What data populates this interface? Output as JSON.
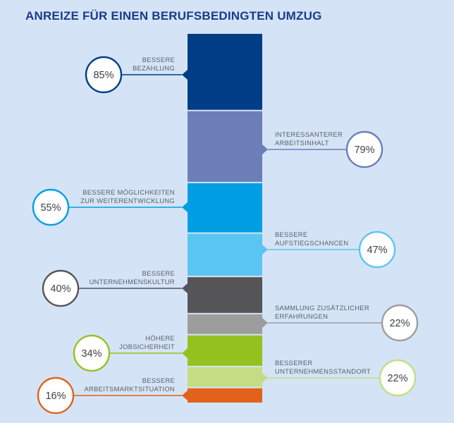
{
  "title": "ANREIZE FÜR EINEN BERUFSBEDINGTEN UMZUG",
  "chart_data": {
    "type": "stacked-bar",
    "title": "ANREIZE FÜR EINEN BERUFSBEDINGTEN UMZUG",
    "unit": "%",
    "items": [
      {
        "label": [
          "BESSERE",
          "BEZAHLUNG"
        ],
        "value": 85,
        "display": "85%",
        "side": "left",
        "color": "#003d87"
      },
      {
        "label": [
          "INTERESSANTERER",
          "ARBEITSINHALT"
        ],
        "value": 79,
        "display": "79%",
        "side": "right",
        "color": "#6b7fb6"
      },
      {
        "label": [
          "BESSERE MÖGLICHKEITEN",
          "ZUR WEITERENTWICKLUNG"
        ],
        "value": 55,
        "display": "55%",
        "side": "left",
        "color": "#009fe3"
      },
      {
        "label": [
          "BESSERE",
          "AUFSTIEGSCHANCEN"
        ],
        "value": 47,
        "display": "47%",
        "side": "right",
        "color": "#5bc5f2"
      },
      {
        "label": [
          "BESSERE",
          "UNTERNEHMENSKULTUR"
        ],
        "value": 40,
        "display": "40%",
        "side": "left",
        "color": "#555558"
      },
      {
        "label": [
          "SAMMLUNG ZUSÄTZLICHER",
          "ERFAHRUNGEN"
        ],
        "value": 22,
        "display": "22%",
        "side": "right",
        "color": "#9d9d9f"
      },
      {
        "label": [
          "HÖHERE",
          "JOBSICHERHEIT"
        ],
        "value": 34,
        "display": "34%",
        "side": "left",
        "color": "#95c11f"
      },
      {
        "label": [
          "BESSERER",
          "UNTERNEHMENSSTANDORT"
        ],
        "value": 22,
        "display": "22%",
        "side": "right",
        "color": "#c5dc85"
      },
      {
        "label": [
          "BESSERE",
          "ARBEITSMARKTSITUATION"
        ],
        "value": 16,
        "display": "16%",
        "side": "left",
        "color": "#e2621b"
      }
    ]
  }
}
